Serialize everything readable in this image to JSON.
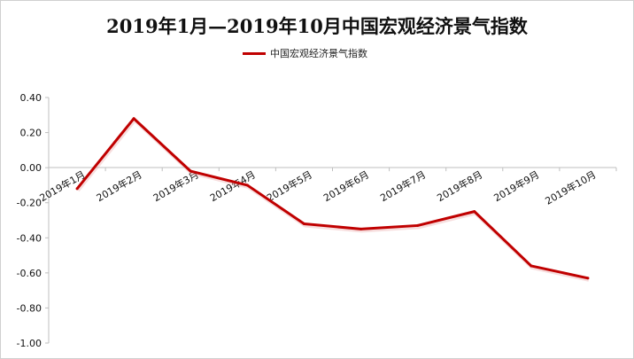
{
  "chart_data": {
    "type": "line",
    "title": "2019年1月—2019年10月中国宏观经济景气指数",
    "xlabel": "",
    "ylabel": "",
    "categories": [
      "2019年1月",
      "2019年2月",
      "2019年3月",
      "2019年4月",
      "2019年5月",
      "2019年6月",
      "2019年7月",
      "2019年8月",
      "2019年9月",
      "2019年10月"
    ],
    "series": [
      {
        "name": "中国宏观经济景气指数",
        "color": "#c00000",
        "values": [
          -0.12,
          0.28,
          -0.02,
          -0.1,
          -0.32,
          -0.35,
          -0.33,
          -0.25,
          -0.56,
          -0.63
        ]
      }
    ],
    "ylim": [
      -1.0,
      0.4
    ],
    "yticks": [
      "0.40",
      "0.20",
      "0.00",
      "-0.20",
      "-0.40",
      "-0.60",
      "-0.80",
      "-1.00"
    ],
    "grid": false,
    "legend": "top-center"
  }
}
